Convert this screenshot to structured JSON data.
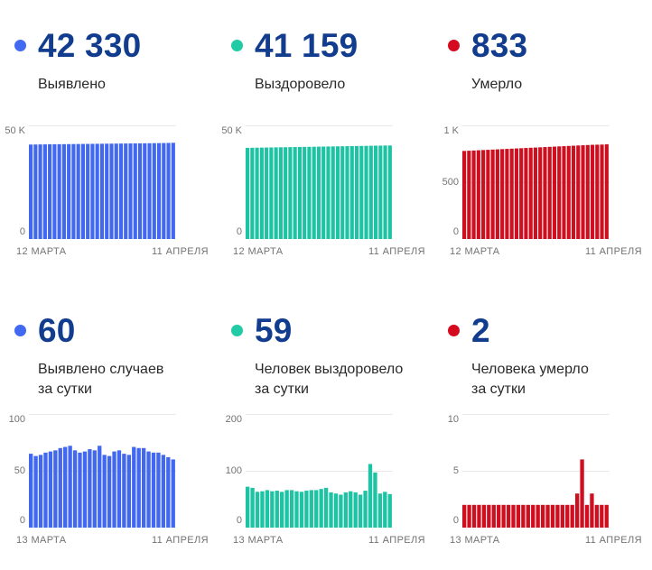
{
  "colors": {
    "background": "#ffffff",
    "number_text": "#123D8F",
    "label_text": "#2a2a2a",
    "axis_text": "#737373",
    "gridline": "#e8e8e8",
    "blue": "#4268EF",
    "teal": "#1DC3A3",
    "red": "#CE0F20",
    "blue_dot": "#4169F1",
    "teal_dot": "#20CBA6",
    "red_dot": "#D50A1E"
  },
  "panels": [
    {
      "value": "42 330",
      "dot_color": "#4169F1",
      "label_lines": [
        "Выявлено"
      ]
    },
    {
      "value": "41 159",
      "dot_color": "#20CBA6",
      "label_lines": [
        "Выздоровело"
      ]
    },
    {
      "value": "833",
      "dot_color": "#D50A1E",
      "label_lines": [
        "Умерло"
      ]
    },
    {
      "value": "60",
      "dot_color": "#4169F1",
      "label_lines": [
        "Выявлено случаев",
        "за сутки"
      ]
    },
    {
      "value": "59",
      "dot_color": "#20CBA6",
      "label_lines": [
        "Человек выздоровело",
        "за сутки"
      ]
    },
    {
      "value": "2",
      "dot_color": "#D50A1E",
      "label_lines": [
        "Человека умерло",
        "за сутки"
      ]
    }
  ],
  "chart_data": [
    {
      "type": "bar",
      "title": "Выявлено",
      "color": "#4268EF",
      "x_start": "12 МАРТА",
      "x_end": "11 АПРЕЛЯ",
      "ymax": 50000,
      "ylim": [
        0,
        50000
      ],
      "yticks": [
        {
          "label": "50 K",
          "value": 50000
        },
        {
          "label": "0",
          "value": 0
        }
      ],
      "values": [
        41560,
        41590,
        41615,
        41640,
        41665,
        41688,
        41710,
        41733,
        41756,
        41778,
        41800,
        41822,
        41845,
        41868,
        41890,
        41912,
        41935,
        41958,
        41980,
        42002,
        42025,
        42048,
        42070,
        42092,
        42115,
        42138,
        42160,
        42190,
        42225,
        42275,
        42330
      ]
    },
    {
      "type": "bar",
      "title": "Выздоровело",
      "color": "#1DC3A3",
      "x_start": "12 МАРТА",
      "x_end": "11 АПРЕЛЯ",
      "ymax": 50000,
      "ylim": [
        0,
        50000
      ],
      "yticks": [
        {
          "label": "50 K",
          "value": 50000
        },
        {
          "label": "0",
          "value": 0
        }
      ],
      "values": [
        40110,
        40145,
        40180,
        40215,
        40250,
        40285,
        40320,
        40355,
        40390,
        40425,
        40460,
        40495,
        40530,
        40565,
        40600,
        40635,
        40670,
        40705,
        40740,
        40775,
        40810,
        40845,
        40880,
        40915,
        40950,
        40985,
        41020,
        41055,
        41090,
        41125,
        41159
      ]
    },
    {
      "type": "bar",
      "title": "Умерло",
      "color": "#CE0F20",
      "x_start": "12 МАРТА",
      "x_end": "11 АПРЕЛЯ",
      "ymax": 1000,
      "ylim": [
        0,
        1000
      ],
      "yticks": [
        {
          "label": "1 K",
          "value": 1000
        },
        {
          "label": "500",
          "value": 500
        },
        {
          "label": "0",
          "value": 0
        }
      ],
      "values": [
        775,
        777,
        779,
        781,
        783,
        785,
        787,
        789,
        791,
        793,
        795,
        797,
        799,
        801,
        803,
        805,
        807,
        809,
        811,
        813,
        815,
        817,
        819,
        821,
        823,
        825,
        827,
        829,
        830,
        831,
        833
      ]
    },
    {
      "type": "bar",
      "title": "Выявлено случаев за сутки",
      "color": "#4268EF",
      "x_start": "13 МАРТА",
      "x_end": "11 АПРЕЛЯ",
      "ymax": 100,
      "ylim": [
        0,
        100
      ],
      "yticks": [
        {
          "label": "100",
          "value": 100
        },
        {
          "label": "50",
          "value": 50
        },
        {
          "label": "0",
          "value": 0
        }
      ],
      "values": [
        65,
        63,
        64,
        66,
        67,
        68,
        70,
        71,
        72,
        68,
        66,
        67,
        69,
        68,
        72,
        64,
        63,
        67,
        68,
        65,
        64,
        71,
        70,
        70,
        67,
        66,
        66,
        64,
        62,
        60
      ]
    },
    {
      "type": "bar",
      "title": "Человек выздоровело за сутки",
      "color": "#1DC3A3",
      "x_start": "13 МАРТА",
      "x_end": "11 АПРЕЛЯ",
      "ymax": 200,
      "ylim": [
        0,
        200
      ],
      "yticks": [
        {
          "label": "200",
          "value": 200
        },
        {
          "label": "100",
          "value": 100
        },
        {
          "label": "0",
          "value": 0
        }
      ],
      "values": [
        72,
        70,
        63,
        64,
        66,
        64,
        65,
        63,
        66,
        66,
        64,
        63,
        65,
        66,
        66,
        68,
        70,
        62,
        60,
        58,
        62,
        64,
        62,
        58,
        65,
        112,
        97,
        60,
        63,
        59
      ]
    },
    {
      "type": "bar",
      "title": "Человека умерло за сутки",
      "color": "#CE0F20",
      "x_start": "13 МАРТА",
      "x_end": "11 АПРЕЛЯ",
      "ymax": 10,
      "ylim": [
        0,
        10
      ],
      "yticks": [
        {
          "label": "10",
          "value": 10
        },
        {
          "label": "5",
          "value": 5
        },
        {
          "label": "0",
          "value": 0
        }
      ],
      "values": [
        2,
        2,
        2,
        2,
        2,
        2,
        2,
        2,
        2,
        2,
        2,
        2,
        2,
        2,
        2,
        2,
        2,
        2,
        2,
        2,
        2,
        2,
        2,
        3,
        6,
        2,
        3,
        2,
        2,
        2
      ]
    }
  ]
}
